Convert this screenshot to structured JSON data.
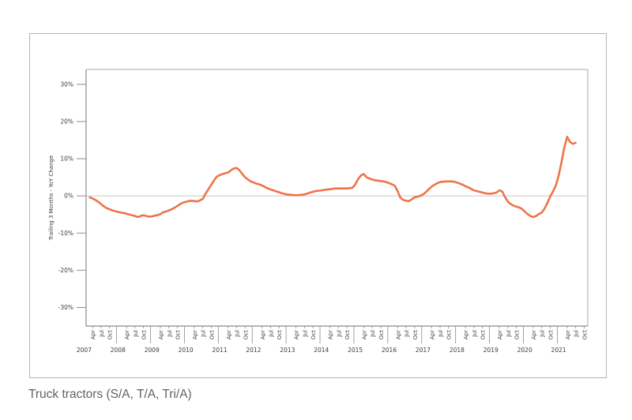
{
  "page": {
    "caption": "Truck tractors (S/A, T/A, Tri/A)"
  },
  "style": {
    "line_color": "#ee744a",
    "axis_dark": "#8c8c8c",
    "axis_light": "#a9a9a9",
    "zero_line": "#c8c8c8",
    "tick_text": "#3c3c3c",
    "caption_text": "#5f6368",
    "frame_border": "#b2b2b2"
  },
  "chart_data": {
    "type": "line",
    "title": "",
    "xlabel": "",
    "ylabel": "Trailing 3 Months - YoY Change",
    "legend_position": "none",
    "grid": "zero-line-only",
    "y_tick_labels": [
      "30%",
      "20%",
      "10%",
      "0%",
      "-10%",
      "-20%",
      "-30%"
    ],
    "y_ticks_percent": [
      30,
      20,
      10,
      0,
      -10,
      -20,
      -30
    ],
    "ylim": [
      -35,
      34
    ],
    "x_domain": {
      "start": 2007.1,
      "end": 2021.9
    },
    "years": [
      2007,
      2008,
      2009,
      2010,
      2011,
      2012,
      2013,
      2014,
      2015,
      2016,
      2017,
      2018,
      2019,
      2020,
      2021
    ],
    "x_month_ticks": [
      {
        "label": "Apr",
        "num": 4
      },
      {
        "label": "Jul",
        "num": 7
      },
      {
        "label": "Oct",
        "num": 10
      }
    ],
    "series": [
      {
        "name": "Truck tractors - trailing 3 months YoY change (%)",
        "points": [
          [
            2007,
            3,
            -0.4
          ],
          [
            2007,
            4,
            -0.7
          ],
          [
            2007,
            5,
            -1.1
          ],
          [
            2007,
            6,
            -1.6
          ],
          [
            2007,
            7,
            -2.2
          ],
          [
            2007,
            8,
            -2.8
          ],
          [
            2007,
            9,
            -3.3
          ],
          [
            2007,
            10,
            -3.6
          ],
          [
            2007,
            11,
            -3.9
          ],
          [
            2007,
            12,
            -4.1
          ],
          [
            2008,
            1,
            -4.3
          ],
          [
            2008,
            2,
            -4.5
          ],
          [
            2008,
            3,
            -4.6
          ],
          [
            2008,
            4,
            -4.8
          ],
          [
            2008,
            5,
            -5.0
          ],
          [
            2008,
            6,
            -5.2
          ],
          [
            2008,
            7,
            -5.4
          ],
          [
            2008,
            8,
            -5.7
          ],
          [
            2008,
            9,
            -5.4
          ],
          [
            2008,
            10,
            -5.2
          ],
          [
            2008,
            11,
            -5.4
          ],
          [
            2008,
            12,
            -5.6
          ],
          [
            2009,
            1,
            -5.5
          ],
          [
            2009,
            2,
            -5.3
          ],
          [
            2009,
            3,
            -5.2
          ],
          [
            2009,
            4,
            -4.9
          ],
          [
            2009,
            5,
            -4.4
          ],
          [
            2009,
            6,
            -4.2
          ],
          [
            2009,
            7,
            -3.9
          ],
          [
            2009,
            8,
            -3.6
          ],
          [
            2009,
            9,
            -3.2
          ],
          [
            2009,
            10,
            -2.7
          ],
          [
            2009,
            11,
            -2.2
          ],
          [
            2009,
            12,
            -1.8
          ],
          [
            2010,
            1,
            -1.6
          ],
          [
            2010,
            2,
            -1.4
          ],
          [
            2010,
            3,
            -1.3
          ],
          [
            2010,
            4,
            -1.4
          ],
          [
            2010,
            5,
            -1.5
          ],
          [
            2010,
            6,
            -1.2
          ],
          [
            2010,
            7,
            -0.8
          ],
          [
            2010,
            8,
            0.6
          ],
          [
            2010,
            9,
            1.8
          ],
          [
            2010,
            10,
            3.0
          ],
          [
            2010,
            11,
            4.2
          ],
          [
            2010,
            12,
            5.2
          ],
          [
            2011,
            1,
            5.6
          ],
          [
            2011,
            2,
            5.9
          ],
          [
            2011,
            3,
            6.1
          ],
          [
            2011,
            4,
            6.3
          ],
          [
            2011,
            5,
            6.9
          ],
          [
            2011,
            6,
            7.4
          ],
          [
            2011,
            7,
            7.5
          ],
          [
            2011,
            8,
            6.9
          ],
          [
            2011,
            9,
            5.9
          ],
          [
            2011,
            10,
            5.0
          ],
          [
            2011,
            11,
            4.4
          ],
          [
            2011,
            12,
            3.9
          ],
          [
            2012,
            1,
            3.6
          ],
          [
            2012,
            2,
            3.3
          ],
          [
            2012,
            3,
            3.1
          ],
          [
            2012,
            4,
            2.8
          ],
          [
            2012,
            5,
            2.4
          ],
          [
            2012,
            6,
            2.0
          ],
          [
            2012,
            7,
            1.7
          ],
          [
            2012,
            8,
            1.5
          ],
          [
            2012,
            9,
            1.2
          ],
          [
            2012,
            10,
            1.0
          ],
          [
            2012,
            11,
            0.7
          ],
          [
            2012,
            12,
            0.5
          ],
          [
            2013,
            1,
            0.4
          ],
          [
            2013,
            2,
            0.3
          ],
          [
            2013,
            3,
            0.2
          ],
          [
            2013,
            4,
            0.2
          ],
          [
            2013,
            5,
            0.2
          ],
          [
            2013,
            6,
            0.3
          ],
          [
            2013,
            7,
            0.4
          ],
          [
            2013,
            8,
            0.6
          ],
          [
            2013,
            9,
            0.9
          ],
          [
            2013,
            10,
            1.1
          ],
          [
            2013,
            11,
            1.3
          ],
          [
            2013,
            12,
            1.4
          ],
          [
            2014,
            1,
            1.5
          ],
          [
            2014,
            2,
            1.6
          ],
          [
            2014,
            3,
            1.7
          ],
          [
            2014,
            4,
            1.8
          ],
          [
            2014,
            5,
            1.9
          ],
          [
            2014,
            6,
            2.0
          ],
          [
            2014,
            7,
            2.0
          ],
          [
            2014,
            8,
            2.0
          ],
          [
            2014,
            9,
            2.0
          ],
          [
            2014,
            10,
            2.0
          ],
          [
            2014,
            11,
            2.1
          ],
          [
            2014,
            12,
            2.2
          ],
          [
            2015,
            1,
            3.1
          ],
          [
            2015,
            2,
            4.5
          ],
          [
            2015,
            3,
            5.5
          ],
          [
            2015,
            4,
            5.9
          ],
          [
            2015,
            5,
            5.0
          ],
          [
            2015,
            6,
            4.7
          ],
          [
            2015,
            7,
            4.4
          ],
          [
            2015,
            8,
            4.2
          ],
          [
            2015,
            9,
            4.1
          ],
          [
            2015,
            10,
            4.0
          ],
          [
            2015,
            11,
            3.9
          ],
          [
            2015,
            12,
            3.7
          ],
          [
            2016,
            1,
            3.4
          ],
          [
            2016,
            2,
            3.1
          ],
          [
            2016,
            3,
            2.7
          ],
          [
            2016,
            4,
            1.2
          ],
          [
            2016,
            5,
            -0.5
          ],
          [
            2016,
            6,
            -1.1
          ],
          [
            2016,
            7,
            -1.3
          ],
          [
            2016,
            8,
            -1.4
          ],
          [
            2016,
            9,
            -0.9
          ],
          [
            2016,
            10,
            -0.4
          ],
          [
            2016,
            11,
            -0.2
          ],
          [
            2016,
            12,
            0.0
          ],
          [
            2017,
            1,
            0.4
          ],
          [
            2017,
            2,
            1.0
          ],
          [
            2017,
            3,
            1.8
          ],
          [
            2017,
            4,
            2.5
          ],
          [
            2017,
            5,
            3.0
          ],
          [
            2017,
            6,
            3.4
          ],
          [
            2017,
            7,
            3.7
          ],
          [
            2017,
            8,
            3.8
          ],
          [
            2017,
            9,
            3.9
          ],
          [
            2017,
            10,
            3.9
          ],
          [
            2017,
            11,
            3.9
          ],
          [
            2017,
            12,
            3.8
          ],
          [
            2018,
            1,
            3.6
          ],
          [
            2018,
            2,
            3.3
          ],
          [
            2018,
            3,
            3.0
          ],
          [
            2018,
            4,
            2.6
          ],
          [
            2018,
            5,
            2.3
          ],
          [
            2018,
            6,
            1.9
          ],
          [
            2018,
            7,
            1.5
          ],
          [
            2018,
            8,
            1.3
          ],
          [
            2018,
            9,
            1.1
          ],
          [
            2018,
            10,
            0.9
          ],
          [
            2018,
            11,
            0.7
          ],
          [
            2018,
            12,
            0.6
          ],
          [
            2019,
            1,
            0.6
          ],
          [
            2019,
            2,
            0.7
          ],
          [
            2019,
            3,
            0.9
          ],
          [
            2019,
            4,
            1.5
          ],
          [
            2019,
            5,
            1.2
          ],
          [
            2019,
            6,
            -0.3
          ],
          [
            2019,
            7,
            -1.5
          ],
          [
            2019,
            8,
            -2.2
          ],
          [
            2019,
            9,
            -2.6
          ],
          [
            2019,
            10,
            -2.9
          ],
          [
            2019,
            11,
            -3.1
          ],
          [
            2019,
            12,
            -3.5
          ],
          [
            2020,
            1,
            -4.2
          ],
          [
            2020,
            2,
            -4.9
          ],
          [
            2020,
            3,
            -5.4
          ],
          [
            2020,
            4,
            -5.7
          ],
          [
            2020,
            5,
            -5.4
          ],
          [
            2020,
            6,
            -4.9
          ],
          [
            2020,
            7,
            -4.5
          ],
          [
            2020,
            8,
            -3.4
          ],
          [
            2020,
            9,
            -1.9
          ],
          [
            2020,
            10,
            -0.2
          ],
          [
            2020,
            11,
            1.2
          ],
          [
            2020,
            12,
            2.8
          ],
          [
            2021,
            1,
            5.5
          ],
          [
            2021,
            2,
            9.0
          ],
          [
            2021,
            3,
            13.0
          ],
          [
            2021,
            4,
            15.9
          ],
          [
            2021,
            5,
            14.5
          ],
          [
            2021,
            6,
            14.0
          ],
          [
            2021,
            7,
            14.3
          ]
        ]
      }
    ]
  }
}
